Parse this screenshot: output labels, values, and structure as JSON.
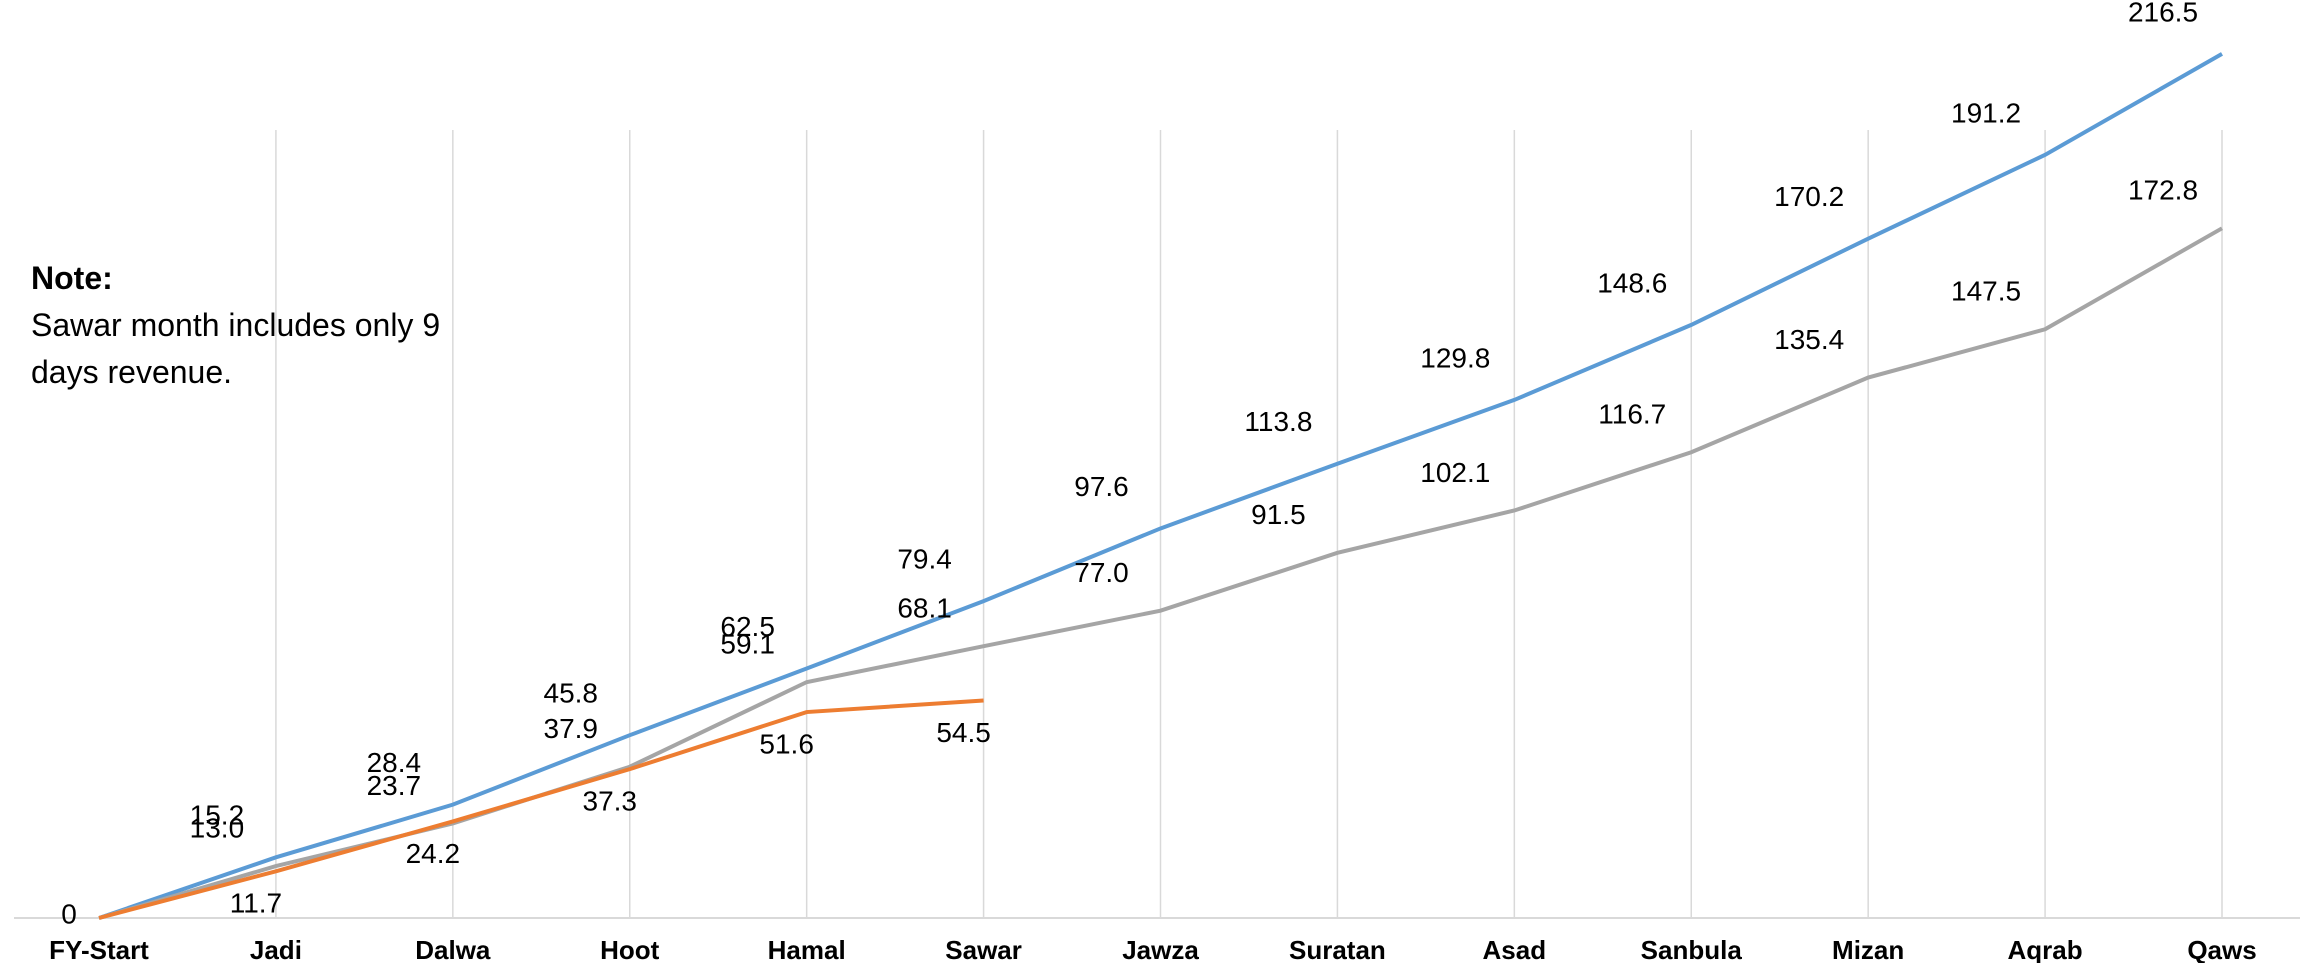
{
  "chart_data": {
    "type": "line",
    "note_title": "Note:",
    "note": "Sawar month includes only 9 days revenue.",
    "categories": [
      "FY-Start",
      "Jadi",
      "Dalwa",
      "Hoot",
      "Hamal",
      "Sawar",
      "Jawza",
      "Suratan",
      "Asad",
      "Sanbula",
      "Mizan",
      "Aqrab",
      "Qaws"
    ],
    "series": [
      {
        "color": "#5b9bd5",
        "values": [
          0,
          15.2,
          28.4,
          45.8,
          62.5,
          79.4,
          97.6,
          113.8,
          129.8,
          148.6,
          170.2,
          191.2,
          216.5
        ],
        "value_labels": [
          "0",
          "15.2",
          "28.4",
          "45.8",
          "62.5",
          "79.4",
          "97.6",
          "113.8",
          "129.8",
          "148.6",
          "170.2",
          "191.2",
          "216.5"
        ]
      },
      {
        "color": "#a5a5a5",
        "values": [
          0,
          13.0,
          23.7,
          37.9,
          59.1,
          68.1,
          77.0,
          91.5,
          102.1,
          116.7,
          135.4,
          147.5,
          172.8
        ],
        "value_labels": [
          null,
          "13.0",
          "23.7",
          "37.9",
          "59.1",
          "68.1",
          "77.0",
          "91.5",
          "102.1",
          "116.7",
          "135.4",
          "147.5",
          "172.8"
        ]
      },
      {
        "color": "#ed7d31",
        "values": [
          0,
          11.7,
          24.2,
          37.3,
          51.6,
          54.5,
          null,
          null,
          null,
          null,
          null,
          null,
          null
        ],
        "value_labels": [
          null,
          "11.7",
          "24.2",
          "37.3",
          "51.6",
          "54.5",
          null,
          null,
          null,
          null,
          null,
          null,
          null
        ]
      }
    ],
    "ylim": [
      0,
      230
    ],
    "grid": true
  }
}
